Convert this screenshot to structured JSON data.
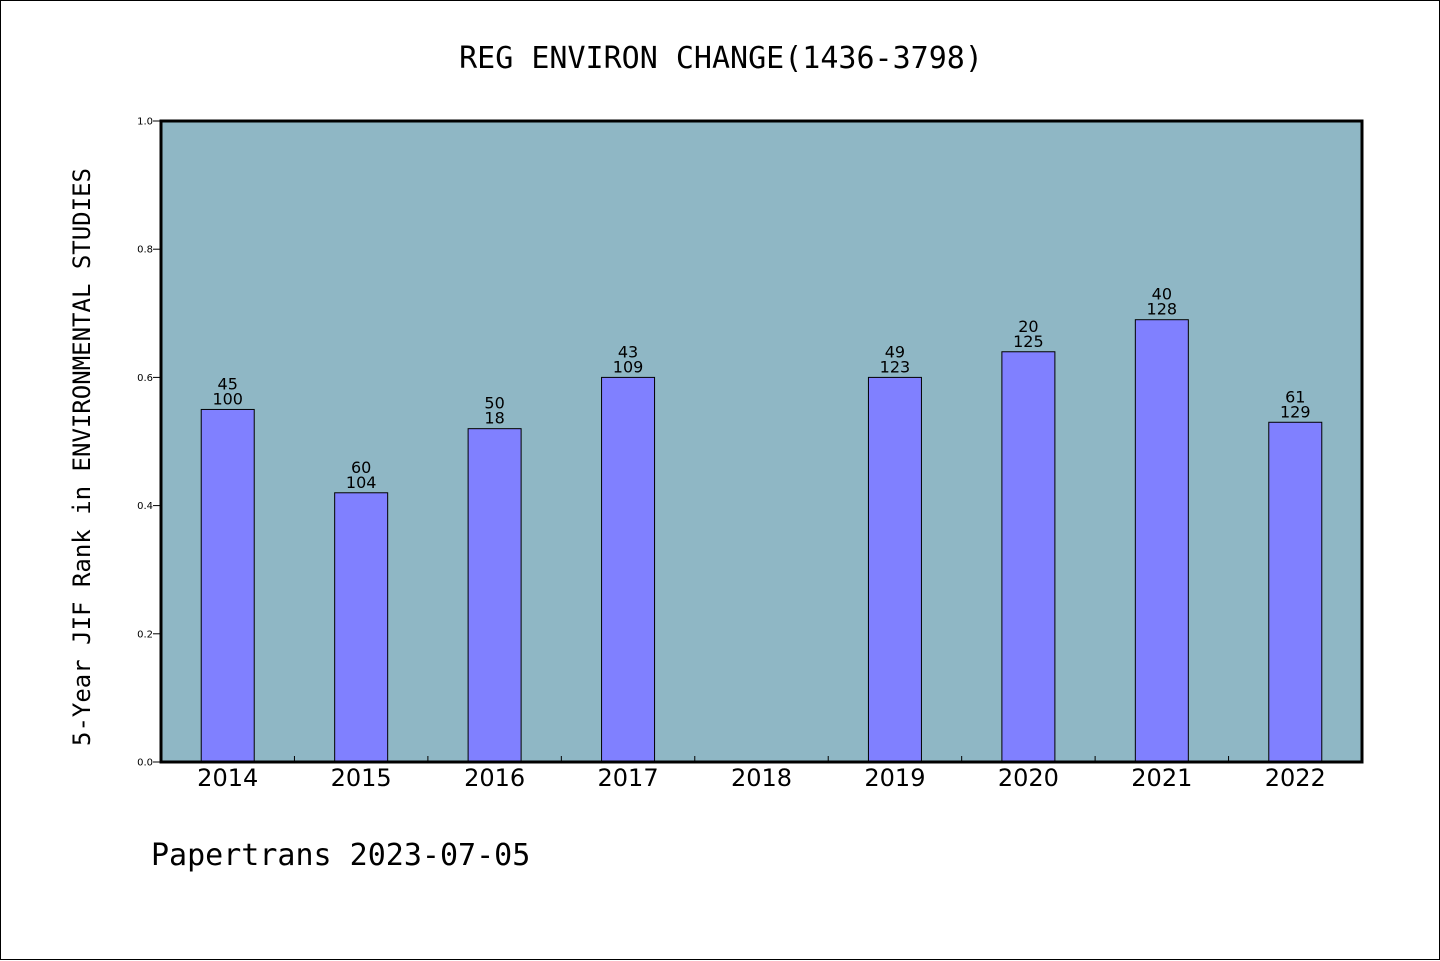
{
  "chart_data": {
    "type": "bar",
    "title": "REG ENVIRON CHANGE(1436-3798)",
    "ylabel": "5-Year JIF Rank in ENVIRONMENTAL STUDIES",
    "xlabel": "",
    "ylim": [
      0,
      1.0
    ],
    "yticks": [
      "0.0",
      "0.2",
      "0.4",
      "0.6",
      "0.8",
      "1.0"
    ],
    "categories": [
      "2014",
      "2015",
      "2016",
      "2017",
      "2018",
      "2019",
      "2020",
      "2021",
      "2022"
    ],
    "values": [
      0.55,
      0.42,
      0.52,
      0.6,
      null,
      0.6,
      0.64,
      0.69,
      0.53
    ],
    "labels_top": [
      "45",
      "60",
      "50",
      "43",
      null,
      "49",
      "20",
      "40",
      "61"
    ],
    "labels_bottom": [
      "100",
      "104",
      "18",
      "109",
      null,
      "123",
      "125",
      "128",
      "129"
    ],
    "bar_color": "#8080ff",
    "plot_background": "#8fb7c5",
    "grid": false
  },
  "footer": "Papertrans 2023-07-05"
}
